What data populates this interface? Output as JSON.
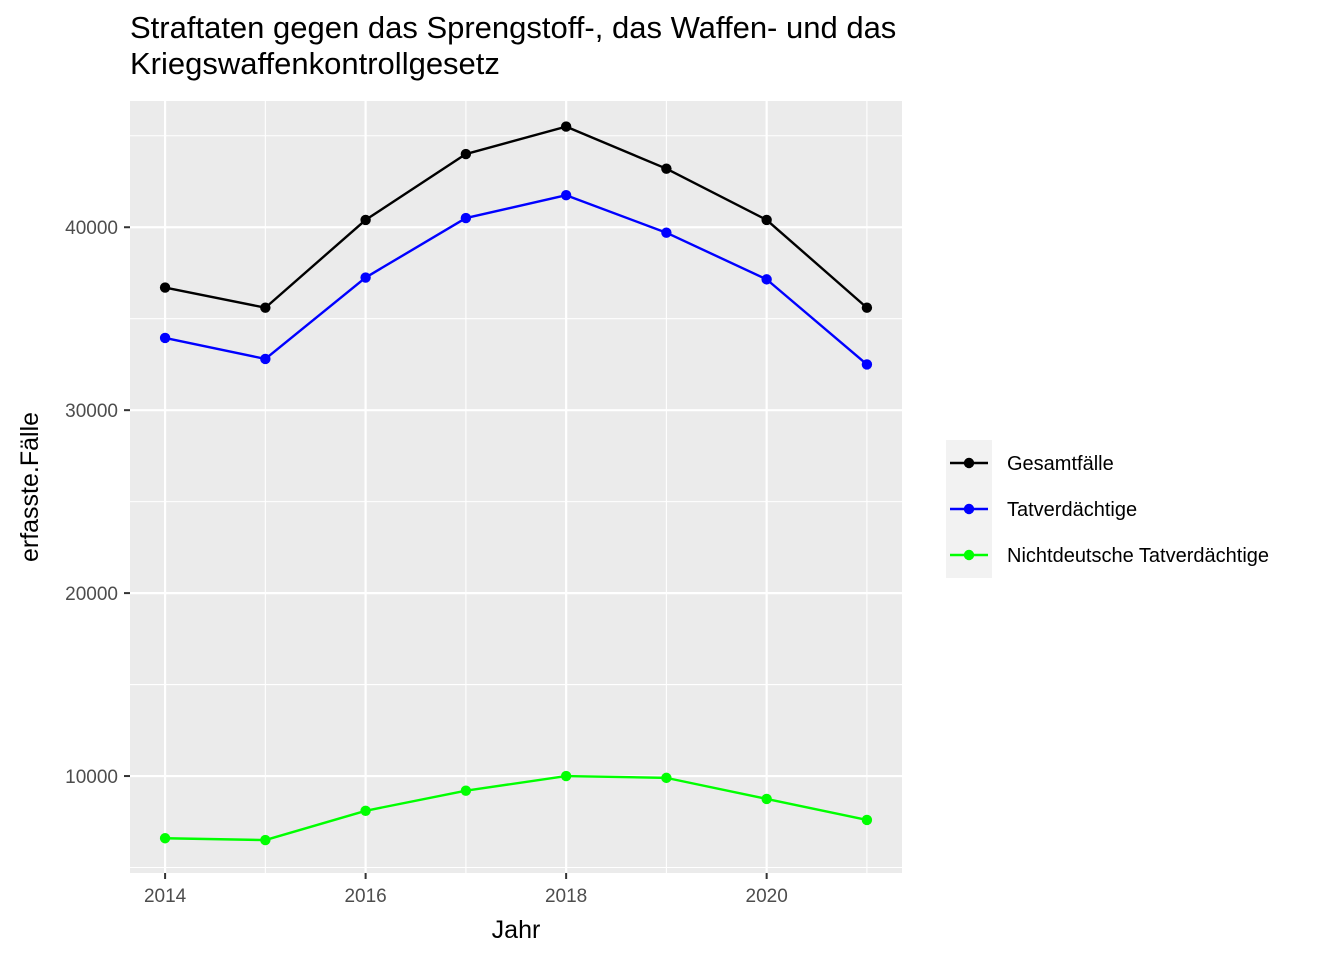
{
  "chart_data": {
    "type": "line",
    "title_line1": "Straftaten gegen das Sprengstoff-, das Waffen- und das",
    "title_line2": "Kriegswaffenkontrollgesetz",
    "xlabel": "Jahr",
    "ylabel": "erfasste.Fälle",
    "x": [
      2014,
      2015,
      2016,
      2017,
      2018,
      2019,
      2020,
      2021
    ],
    "xlim": [
      2013.65,
      2021.35
    ],
    "ylim": [
      4700,
      46900
    ],
    "x_ticks": [
      2014,
      2016,
      2018,
      2020
    ],
    "y_ticks": [
      10000,
      20000,
      30000,
      40000
    ],
    "x_tick_labels": [
      "2014",
      "2016",
      "2018",
      "2020"
    ],
    "y_tick_labels": [
      "10000",
      "20000",
      "30000",
      "40000"
    ],
    "grid": true,
    "legend_position": "right",
    "series": [
      {
        "name": "Gesamtfälle",
        "color": "#000000",
        "values": [
          36700,
          35600,
          40400,
          44000,
          45500,
          43200,
          40400,
          35600
        ]
      },
      {
        "name": "Tatverdächtige",
        "color": "#0000ff",
        "values": [
          33950,
          32800,
          37250,
          40500,
          41750,
          39700,
          37150,
          32500
        ]
      },
      {
        "name": "Nichtdeutsche Tatverdächtige",
        "color": "#00ff00",
        "values": [
          6600,
          6500,
          8100,
          9200,
          10000,
          9900,
          8750,
          7600
        ]
      }
    ]
  }
}
